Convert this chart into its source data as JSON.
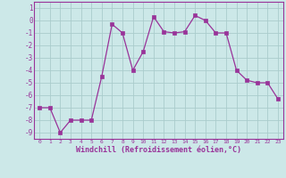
{
  "x": [
    0,
    1,
    2,
    3,
    4,
    5,
    6,
    7,
    8,
    9,
    10,
    11,
    12,
    13,
    14,
    15,
    16,
    17,
    18,
    19,
    20,
    21,
    22,
    23
  ],
  "y": [
    -7,
    -7,
    -9,
    -8,
    -8,
    -8,
    -4.5,
    -0.3,
    -1,
    -4,
    -2.5,
    0.3,
    -0.9,
    -1,
    -0.9,
    0.4,
    0,
    -1,
    -1,
    -4,
    -4.8,
    -5,
    -5,
    -6.3
  ],
  "line_color": "#993399",
  "marker_color": "#993399",
  "bg_color": "#cce8e8",
  "grid_color": "#aacccc",
  "xlabel": "Windchill (Refroidissement éolien,°C)",
  "ylim": [
    -9.5,
    1.5
  ],
  "xlim": [
    -0.5,
    23.5
  ],
  "yticks": [
    1,
    0,
    -1,
    -2,
    -3,
    -4,
    -5,
    -6,
    -7,
    -8,
    -9
  ],
  "xticks": [
    0,
    1,
    2,
    3,
    4,
    5,
    6,
    7,
    8,
    9,
    10,
    11,
    12,
    13,
    14,
    15,
    16,
    17,
    18,
    19,
    20,
    21,
    22,
    23
  ]
}
